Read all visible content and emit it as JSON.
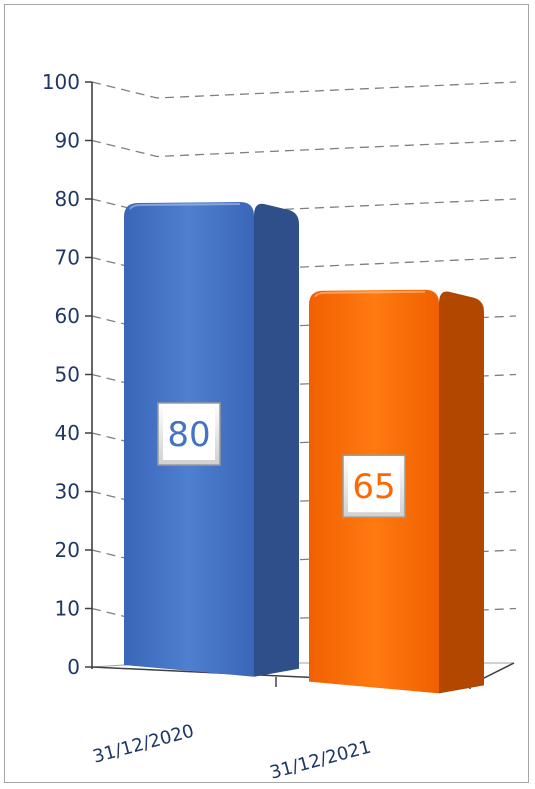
{
  "chart_data": {
    "type": "bar",
    "categories": [
      "31/12/2020",
      "31/12/2021"
    ],
    "values": [
      80,
      65
    ],
    "ylim": [
      0,
      100
    ],
    "yticks": [
      0,
      10,
      20,
      30,
      40,
      50,
      60,
      70,
      80,
      90,
      100
    ],
    "grid": true,
    "gridStyle": "dashed",
    "three_d": true,
    "colors": [
      "#4472c4",
      "#ff6600"
    ],
    "labelColors": [
      "#4472c4",
      "#ff6600"
    ],
    "title": "",
    "xlabel": "",
    "ylabel": ""
  }
}
